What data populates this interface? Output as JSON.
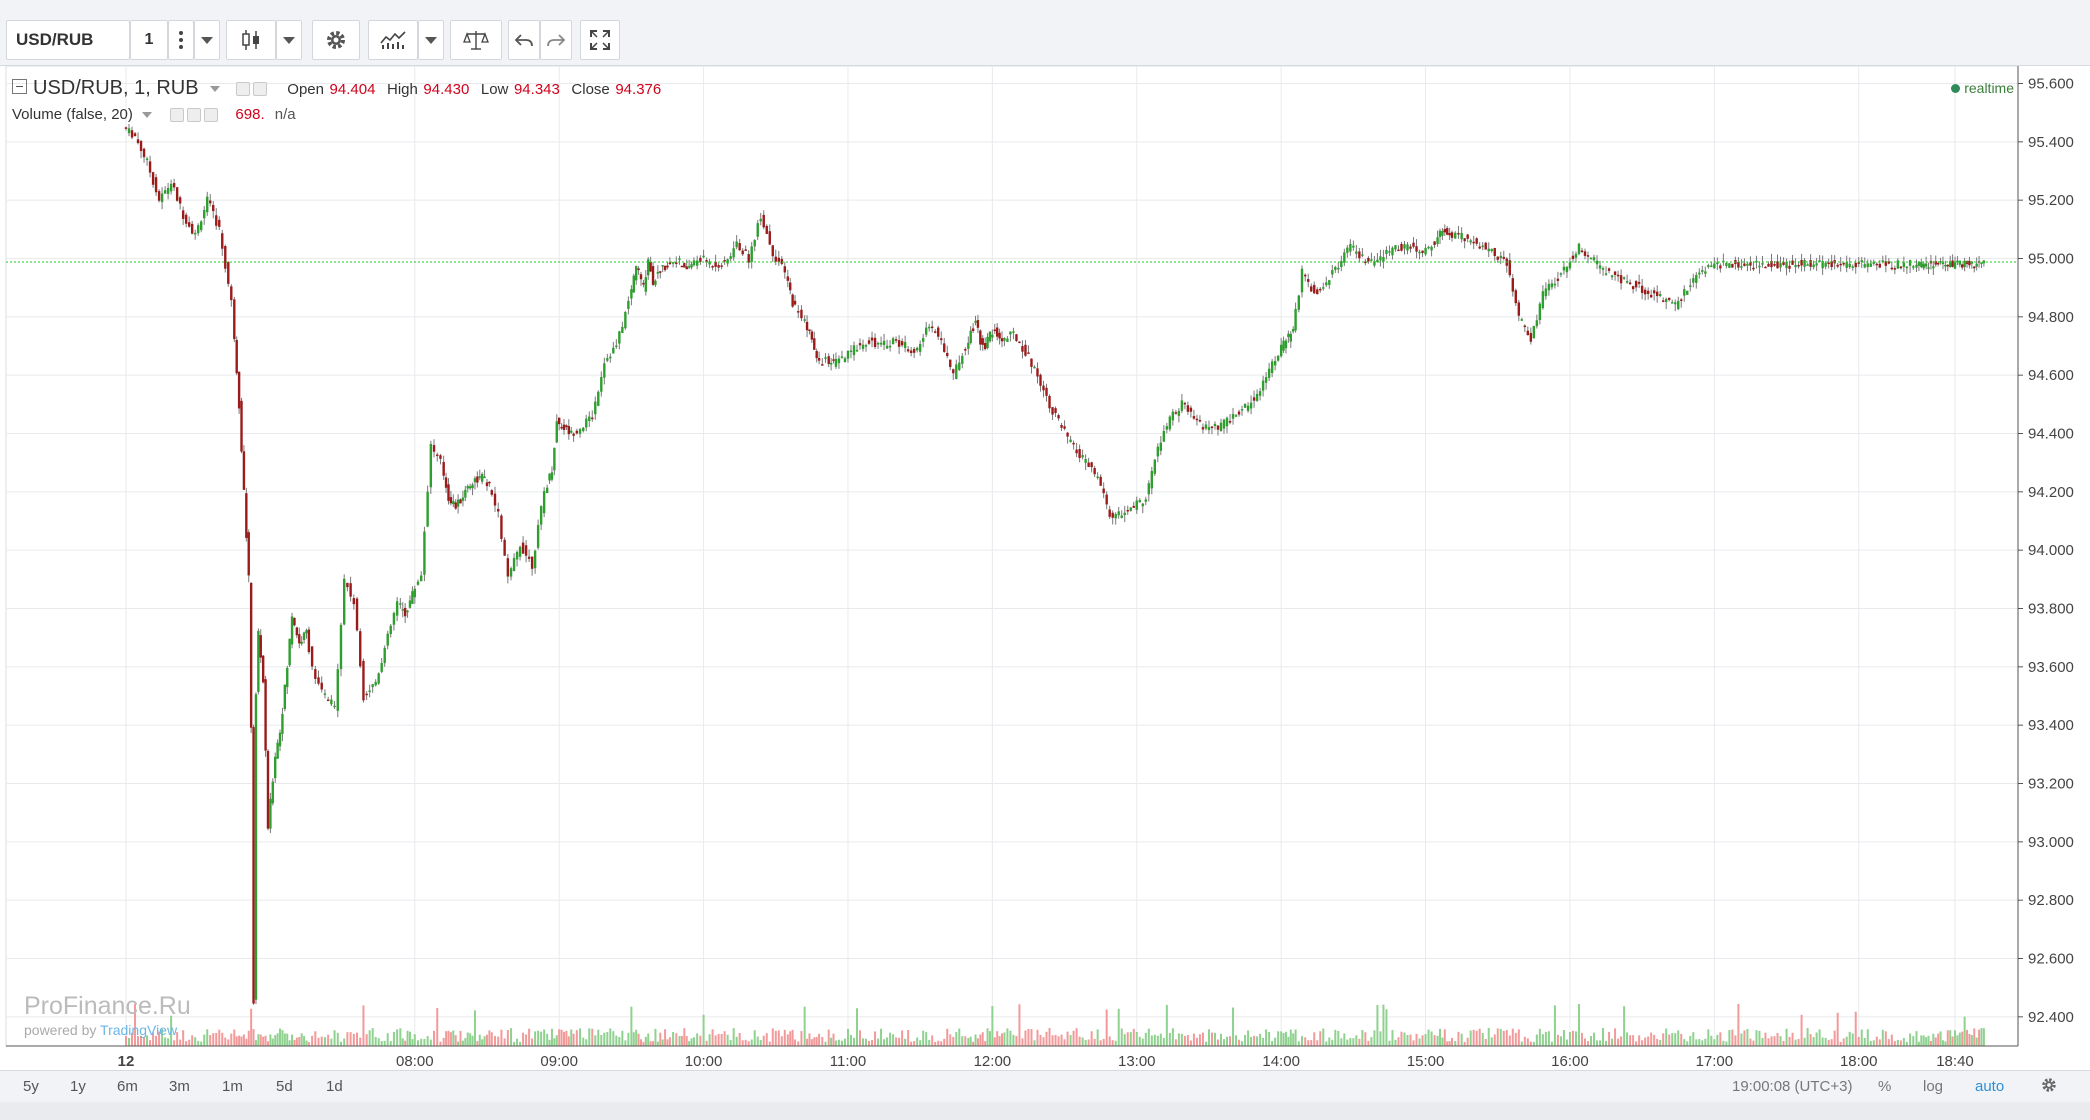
{
  "toolbar": {
    "symbol": "USD/RUB",
    "interval": "1"
  },
  "legend": {
    "title": "USD/RUB, 1, RUB",
    "open_label": "Open",
    "open": "94.404",
    "high_label": "High",
    "high": "94.430",
    "low_label": "Low",
    "low": "94.343",
    "close_label": "Close",
    "close": "94.376",
    "volume_title": "Volume (false, 20)",
    "volume_value": "698.",
    "volume_na": "n/a",
    "realtime": "realtime"
  },
  "watermark": {
    "brand": "ProFinance.Ru",
    "powered": "powered by",
    "tv": "TradingView"
  },
  "bottom": {
    "ranges": [
      "5y",
      "1y",
      "6m",
      "3m",
      "1m",
      "5d",
      "1d"
    ],
    "time": "19:00:08 (UTC+3)",
    "pct": "%",
    "log": "log",
    "auto": "auto"
  },
  "colors": {
    "up": "#2e9e2e",
    "down": "#9b1b1b",
    "vol_up": "#8fd18f",
    "vol_down": "#f29a9a",
    "last_price_bg": "#22ee22"
  },
  "chart_data": {
    "type": "line",
    "title": "USD/RUB, 1, RUB",
    "last_price": 94.988,
    "ylim": [
      92.3,
      95.66
    ],
    "y_ticks": [
      95.6,
      95.4,
      95.2,
      95.0,
      94.8,
      94.6,
      94.4,
      94.2,
      94.0,
      93.8,
      93.6,
      93.4,
      93.2,
      93.0,
      92.8,
      92.6,
      92.4
    ],
    "y_tick_labels": [
      "95.600",
      "95.400",
      "95.200",
      "95.000",
      "94.800",
      "94.600",
      "94.400",
      "94.200",
      "94.000",
      "93.800",
      "93.600",
      "93.400",
      "93.200",
      "93.000",
      "92.800",
      "92.600",
      "92.400"
    ],
    "x_labels": [
      "12",
      "08:00",
      "09:00",
      "10:00",
      "11:00",
      "12:00",
      "13:00",
      "14:00",
      "15:00",
      "16:00",
      "17:00",
      "18:00",
      "18:40"
    ],
    "x_label_minutes": [
      360,
      480,
      540,
      600,
      660,
      720,
      780,
      840,
      900,
      960,
      1020,
      1080,
      1120
    ],
    "series": [
      {
        "x": [
          360,
          365,
          370,
          375,
          380,
          385,
          390,
          395,
          400,
          405,
          408,
          410,
          412,
          413,
          414,
          415,
          416,
          418,
          420,
          423,
          425,
          428,
          430,
          433,
          436,
          440,
          444,
          448,
          452,
          456,
          460,
          465,
          470,
          474,
          477,
          480,
          484,
          488,
          492,
          495,
          498,
          500,
          503,
          506,
          509,
          512,
          516,
          520,
          525,
          530,
          535,
          538,
          540,
          543,
          546,
          550,
          555,
          560,
          565,
          570,
          573,
          576,
          578,
          580,
          583,
          586,
          590,
          593,
          596,
          600,
          605,
          610,
          615,
          620,
          625,
          630,
          635,
          638,
          642,
          645,
          648,
          652,
          655,
          660,
          665,
          670,
          675,
          680,
          685,
          690,
          695,
          700,
          705,
          710,
          712,
          714,
          716,
          718,
          720,
          722,
          725,
          730,
          735,
          740,
          745,
          750,
          755,
          760,
          765,
          770,
          775,
          780,
          785,
          790,
          795,
          800,
          805,
          810,
          815,
          820,
          825,
          830,
          835,
          840,
          843,
          846,
          850,
          855,
          860,
          865,
          870,
          875,
          880,
          885,
          890,
          895,
          900,
          905,
          908,
          911,
          915,
          920,
          925,
          930,
          935,
          940,
          945,
          950,
          955,
          960,
          965,
          970,
          975,
          980,
          985,
          990,
          995,
          1000,
          1005,
          1010,
          1015,
          1020,
          1025,
          1030,
          1035,
          1040,
          1045,
          1050,
          1055,
          1060,
          1065,
          1070,
          1075,
          1080,
          1085,
          1090,
          1095,
          1100,
          1104,
          1107,
          1110,
          1112,
          1115,
          1118,
          1120,
          1123,
          1126,
          1128,
          1130,
          1133
        ],
        "values": [
          95.45,
          95.42,
          95.33,
          95.2,
          95.26,
          95.15,
          95.08,
          95.2,
          95.1,
          94.85,
          94.5,
          94.2,
          93.9,
          93.4,
          92.45,
          93.5,
          93.72,
          93.55,
          93.05,
          93.3,
          93.38,
          93.6,
          93.78,
          93.68,
          93.72,
          93.55,
          93.5,
          93.46,
          93.9,
          93.82,
          93.5,
          93.55,
          93.7,
          93.82,
          93.78,
          93.85,
          93.92,
          94.36,
          94.3,
          94.18,
          94.15,
          94.17,
          94.22,
          94.24,
          94.25,
          94.22,
          94.12,
          93.9,
          94.02,
          93.95,
          94.2,
          94.28,
          94.44,
          94.42,
          94.4,
          94.42,
          94.46,
          94.65,
          94.7,
          94.85,
          94.98,
          94.9,
          95.0,
          94.92,
          94.96,
          94.98,
          95.0,
          94.96,
          94.98,
          95.0,
          94.98,
          94.98,
          95.05,
          95.0,
          95.15,
          95.02,
          94.95,
          94.85,
          94.8,
          94.75,
          94.65,
          94.65,
          94.64,
          94.66,
          94.7,
          94.72,
          94.7,
          94.72,
          94.7,
          94.68,
          94.78,
          94.72,
          94.6,
          94.7,
          94.75,
          94.78,
          94.72,
          94.7,
          94.74,
          94.75,
          94.72,
          94.74,
          94.68,
          94.6,
          94.5,
          94.42,
          94.35,
          94.3,
          94.25,
          94.12,
          94.12,
          94.15,
          94.18,
          94.35,
          94.45,
          94.5,
          94.45,
          94.42,
          94.42,
          94.45,
          94.48,
          94.52,
          94.6,
          94.68,
          94.72,
          94.75,
          94.95,
          94.88,
          94.92,
          94.98,
          95.04,
          95.0,
          94.98,
          95.02,
          95.04,
          95.04,
          95.02,
          95.06,
          95.1,
          95.08,
          95.08,
          95.06,
          95.04,
          95.02,
          94.98,
          94.8,
          94.72,
          94.88,
          94.92,
          94.98,
          95.04,
          95.0,
          94.96,
          94.94,
          94.92,
          94.9,
          94.88,
          94.86,
          94.84,
          94.9,
          94.95,
          94.98,
          94.98,
          94.98,
          94.98,
          94.98,
          94.98,
          94.98,
          94.98,
          94.98,
          94.98,
          94.98,
          94.98,
          94.98,
          94.98,
          94.98,
          94.98,
          94.98,
          94.98,
          94.98,
          94.98,
          94.98,
          94.98,
          94.98,
          94.98,
          94.98,
          94.98,
          94.98,
          94.98,
          94.988
        ]
      }
    ]
  }
}
